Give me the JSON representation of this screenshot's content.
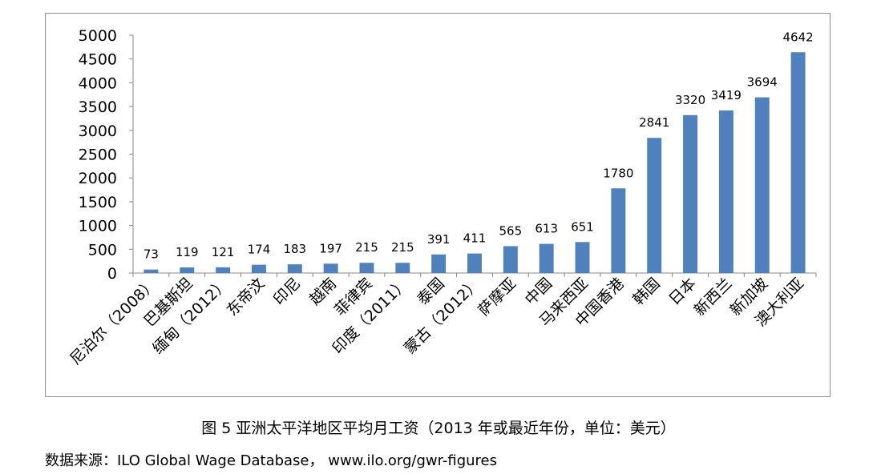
{
  "chart_data": {
    "type": "bar",
    "title": "",
    "xlabel": "",
    "ylabel": "",
    "ylim": [
      0,
      5000
    ],
    "yticks": [
      0,
      500,
      1000,
      1500,
      2000,
      2500,
      3000,
      3500,
      4000,
      4500,
      5000
    ],
    "grid": false,
    "legend": "none",
    "bar_color": "#4f81bd",
    "categories": [
      "尼泊尔（2008）",
      "巴基斯坦",
      "缅甸（2012）",
      "东帝汶",
      "印尼",
      "越南",
      "菲律宾",
      "印度（2011）",
      "泰国",
      "蒙古（2012）",
      "萨摩亚",
      "中国",
      "马来西亚",
      "中国香港",
      "韩国",
      "日本",
      "新西兰",
      "新加坡",
      "澳大利亚"
    ],
    "values": [
      73,
      119,
      121,
      174,
      183,
      197,
      215,
      215,
      391,
      411,
      565,
      613,
      651,
      1780,
      2841,
      3320,
      3419,
      3694,
      4642
    ]
  },
  "caption": "图 5 亚洲太平洋地区平均月工资（2013 年或最近年份，单位：美元）",
  "source": "数据来源：ILO Global Wage Database， www.ilo.org/gwr-figures"
}
